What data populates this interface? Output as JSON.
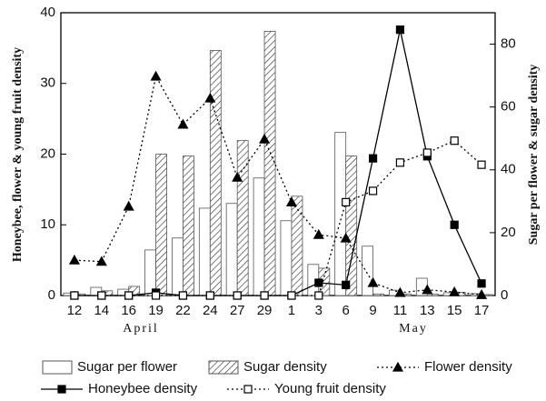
{
  "chart_data": {
    "type": "bar-line",
    "categories": [
      "12",
      "14",
      "16",
      "19",
      "22",
      "24",
      "27",
      "29",
      "1",
      "3",
      "6",
      "9",
      "11",
      "13",
      "15",
      "17"
    ],
    "annotations": [
      "April",
      "May"
    ],
    "ylabel": "Honeybee, flower & young fruit density",
    "y2label": "Sugar per flower & sugar density",
    "ylim": [
      0,
      40
    ],
    "yticks": [
      0,
      10,
      20,
      30,
      40
    ],
    "y2lim": [
      0,
      90
    ],
    "y2ticks": [
      0,
      20,
      40,
      60,
      80
    ],
    "series": [
      {
        "name": "Sugar per flower",
        "type": "bar",
        "axis": "y2",
        "color": "#ffffff",
        "pattern": "plain",
        "values": [
          0.8,
          2.6,
          2,
          14.5,
          18.3,
          27.8,
          29.3,
          37.4,
          23.8,
          9.9,
          51.9,
          15.7,
          1.7,
          5.5,
          0.9,
          0.6
        ]
      },
      {
        "name": "Sugar density",
        "type": "bar",
        "axis": "y2",
        "color": "#ffffff",
        "pattern": "hatch",
        "values": [
          0.5,
          1.5,
          2.9,
          45,
          44.4,
          78,
          49.3,
          84.1,
          31.6,
          8.7,
          44.4,
          0.5,
          0.5,
          0.5,
          1,
          0.3
        ]
      },
      {
        "name": "Flower density",
        "type": "line",
        "color": "#000000",
        "dash": "dotted",
        "marker": "triangle",
        "values": [
          5,
          4.8,
          12.6,
          31,
          24.2,
          27.9,
          16.7,
          22.1,
          13.2,
          8.6,
          8.1,
          1.8,
          0.4,
          0.8,
          0.5,
          0.1
        ]
      },
      {
        "name": "Honeybee density",
        "type": "line",
        "color": "#000000",
        "dash": "solid",
        "marker": "square",
        "values": [
          0,
          0,
          0,
          0.4,
          0,
          0,
          0,
          0,
          0,
          1.8,
          1.5,
          19.4,
          37.6,
          19.7,
          10,
          1.7
        ]
      },
      {
        "name": "Young fruit density",
        "type": "line",
        "color": "#000000",
        "dash": "dotted",
        "marker": "open-square",
        "values": [
          0,
          0,
          0,
          0,
          0,
          0,
          0,
          0,
          0,
          0,
          13.2,
          14.8,
          18.8,
          20.2,
          21.9,
          18.5
        ]
      }
    ]
  }
}
